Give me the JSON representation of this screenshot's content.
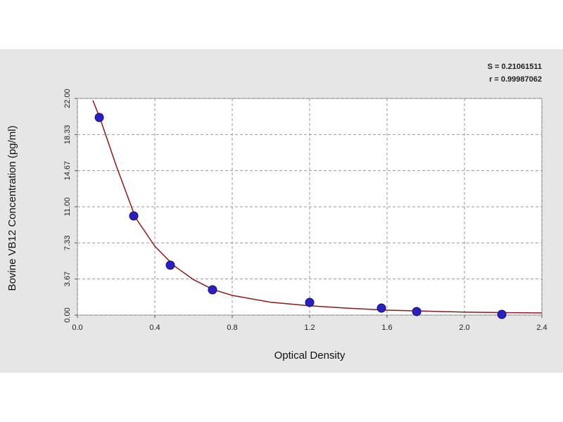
{
  "chart_data": {
    "type": "scatter",
    "x_label": "Optical Density",
    "y_label": "Bovine VB12 Concentration (pg/ml)",
    "annotations": [
      "S = 0.21061511",
      "r = 0.99987062"
    ],
    "xlim": [
      0,
      2.4
    ],
    "ylim": [
      0,
      22
    ],
    "xticks": [
      {
        "value": 0,
        "label": "0.0"
      },
      0.4,
      0.8,
      1.2,
      1.6,
      {
        "value": 2,
        "label": "2.0"
      },
      2.4
    ],
    "yticks": [
      {
        "value": 0,
        "label": "0.00"
      },
      {
        "value": 3.67,
        "label": "3.67"
      },
      {
        "value": 7.33,
        "label": "7.33"
      },
      {
        "value": 11,
        "label": "11.00"
      },
      {
        "value": 14.67,
        "label": "14.67"
      },
      {
        "value": 18.33,
        "label": "18.33"
      },
      {
        "value": 22,
        "label": "22.00"
      }
    ],
    "grid": true,
    "series": [
      {
        "mode": "line",
        "color": "#8b1a1a",
        "x": [
          0.08,
          0.12,
          0.2,
          0.3,
          0.4,
          0.5,
          0.6,
          0.7,
          0.8,
          1.0,
          1.2,
          1.4,
          1.6,
          1.8,
          2.0,
          2.2,
          2.4
        ],
        "values": [
          21.8,
          19.8,
          15.2,
          9.9,
          7.0,
          5.0,
          3.6,
          2.6,
          2.0,
          1.3,
          0.95,
          0.7,
          0.5,
          0.4,
          0.3,
          0.25,
          0.22
        ]
      },
      {
        "mode": "markers",
        "color": "#2a1fc4",
        "x": [
          0.113,
          0.291,
          0.48,
          0.698,
          1.2,
          1.571,
          1.753,
          2.193
        ],
        "values": [
          20.07,
          10.07,
          5.07,
          2.57,
          1.29,
          0.71,
          0.36,
          0.07
        ]
      }
    ]
  }
}
